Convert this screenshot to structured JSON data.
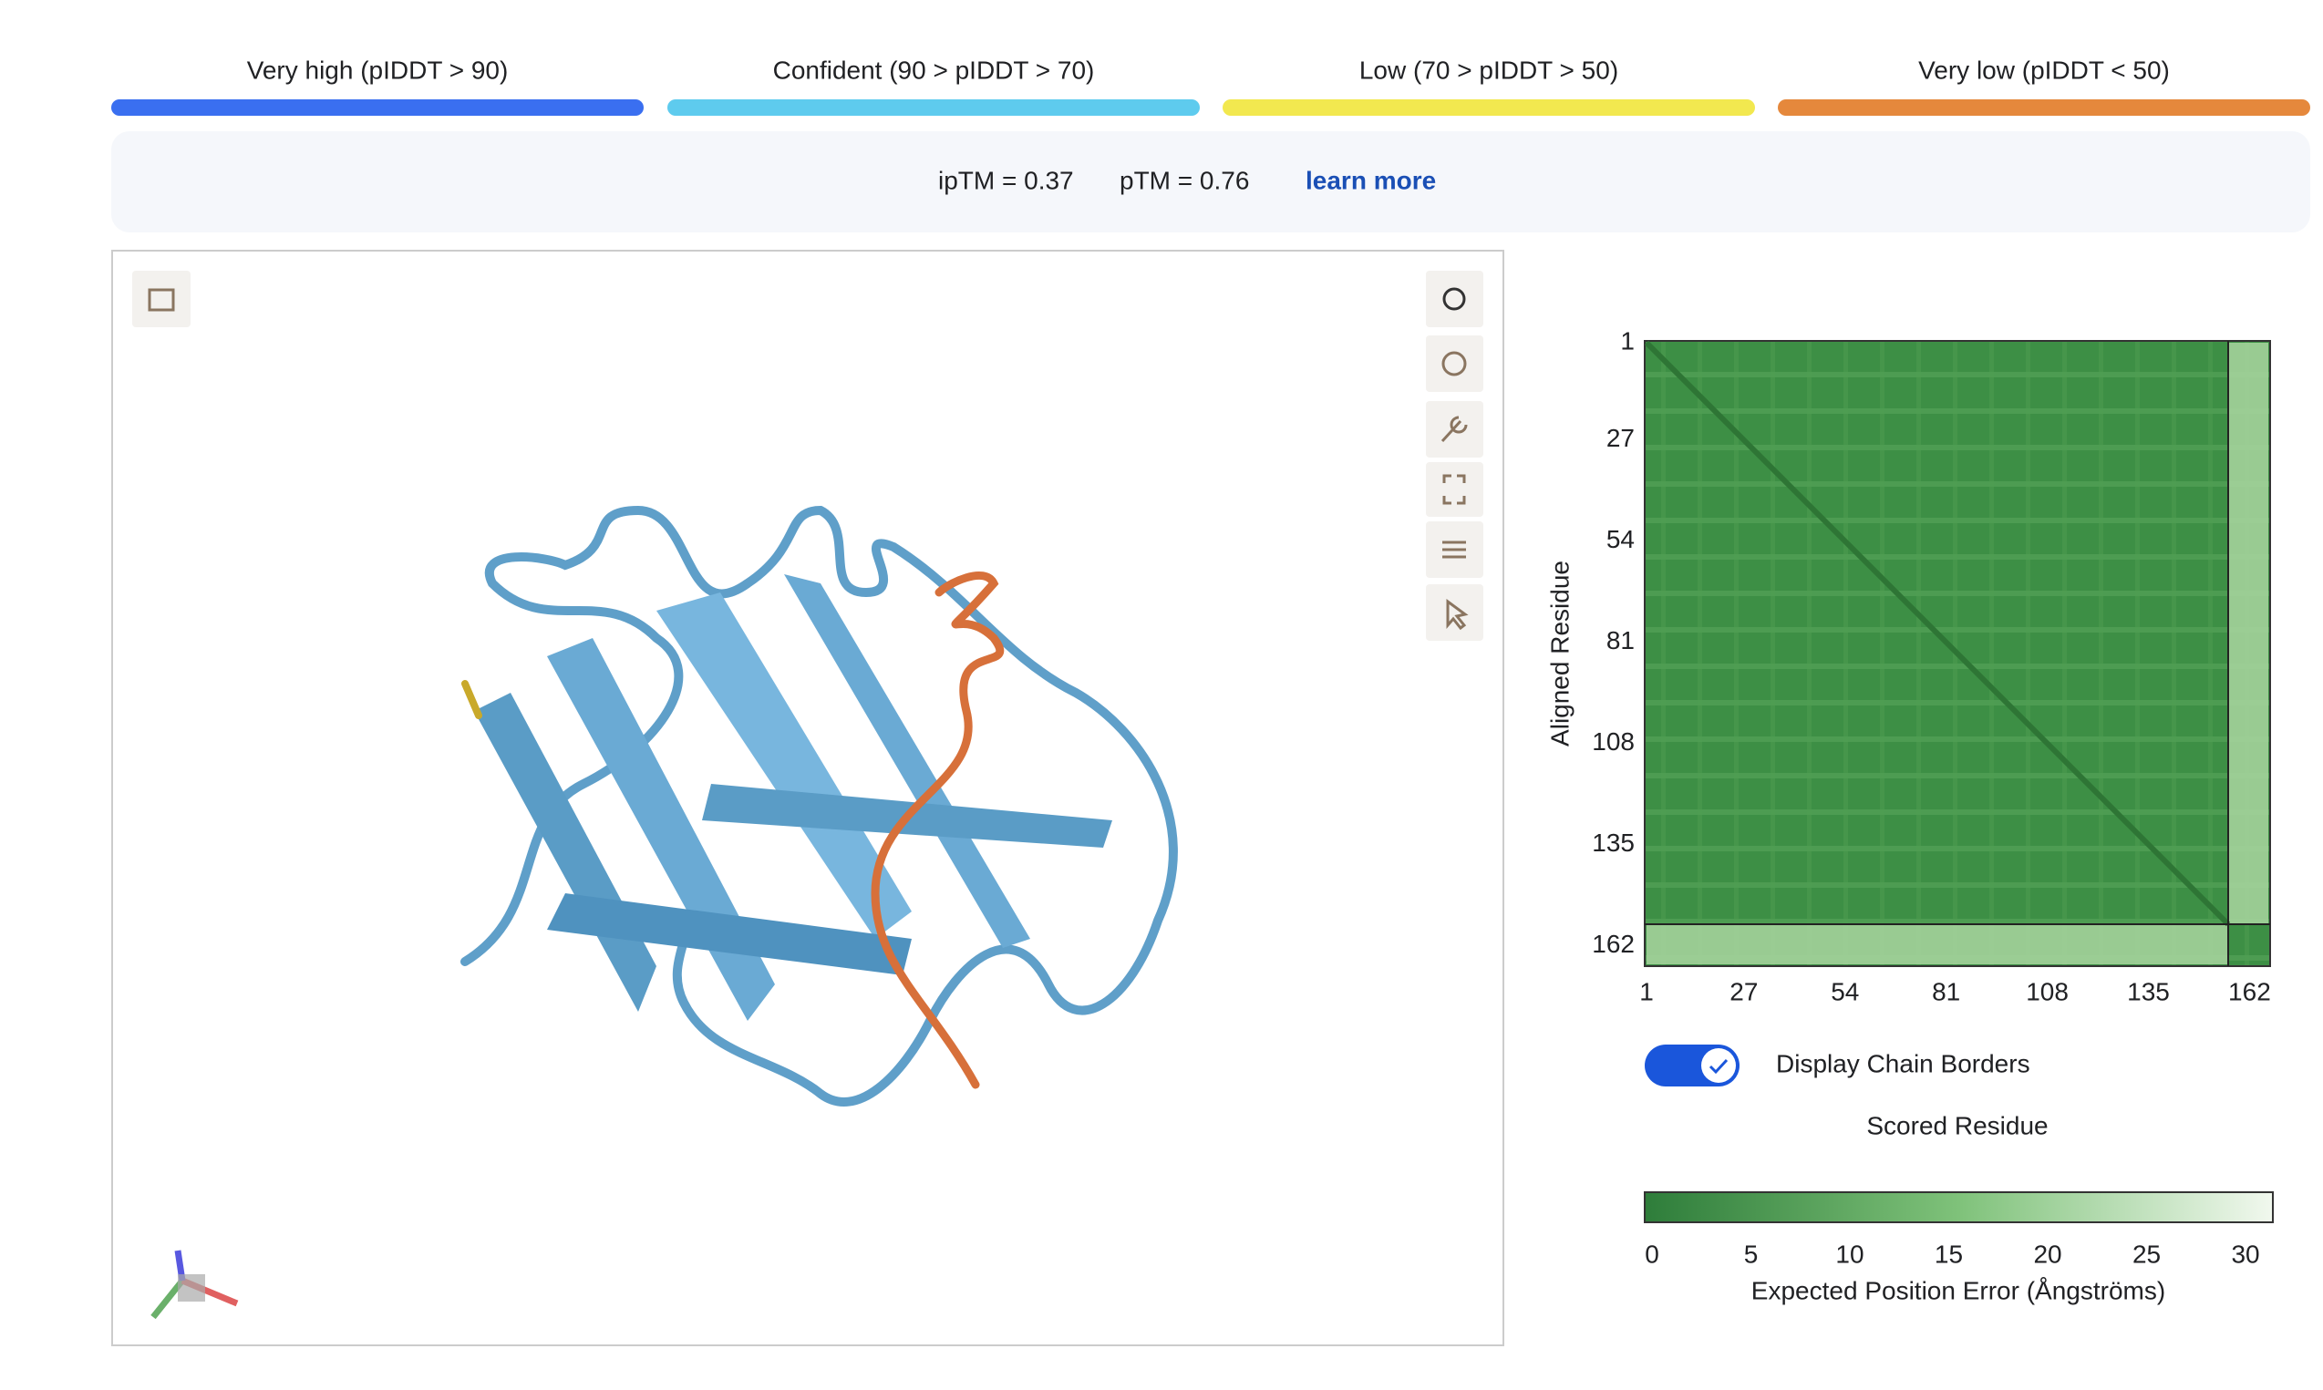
{
  "legend": [
    {
      "label": "Very high (pIDDT > 90)",
      "color": "#3a6ff0"
    },
    {
      "label": "Confident (90 > pIDDT > 70)",
      "color": "#5ecbee"
    },
    {
      "label": "Low (70 > pIDDT > 50)",
      "color": "#f2e84f"
    },
    {
      "label": "Very low (pIDDT < 50)",
      "color": "#e5883c"
    }
  ],
  "metrics": {
    "iptm": "ipTM = 0.37",
    "ptm": "pTM = 0.76",
    "link": "learn more"
  },
  "pae_plot": {
    "y_label": "Aligned Residue",
    "lim": [
      0.5,
      167.5
    ],
    "ticks": [
      1,
      27,
      54,
      81,
      108,
      135,
      162
    ],
    "toggle_label": "Display Chain Borders",
    "x_label": "Scored Residue",
    "colorbar": {
      "lim": [
        0,
        31.75
      ],
      "ticks": [
        0,
        5,
        10,
        15,
        20,
        25,
        30
      ],
      "label": "Expected Position Error (Ångströms)"
    }
  }
}
